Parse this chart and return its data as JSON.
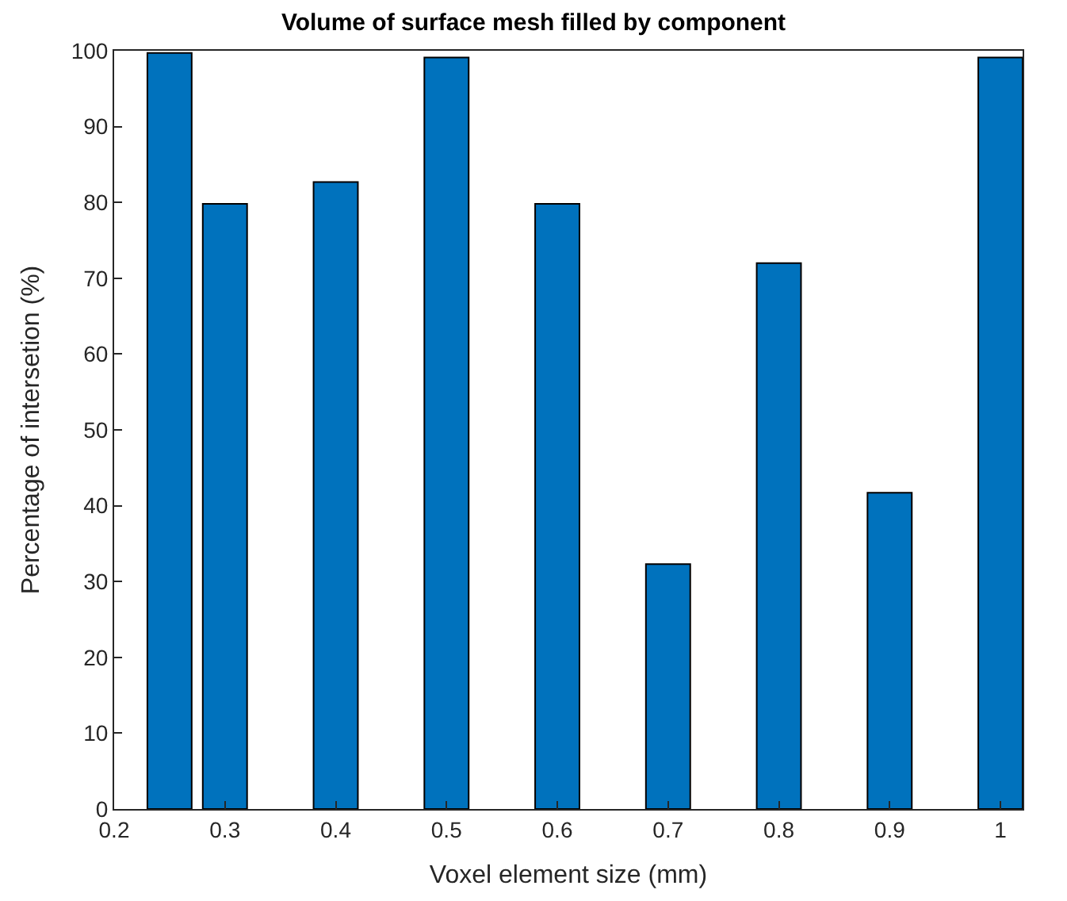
{
  "chart_data": {
    "type": "bar",
    "title": "Volume of surface mesh filled by component",
    "xlabel": "Voxel element size (mm)",
    "ylabel": "Percentage of intersetion (%)",
    "x": [
      0.25,
      0.3,
      0.4,
      0.5,
      0.6,
      0.7,
      0.8,
      0.9,
      1
    ],
    "values": [
      99.7,
      79.8,
      82.7,
      99.1,
      79.8,
      32.3,
      72,
      41.7,
      99.1
    ],
    "color": "#0072bd",
    "xlim": [
      0.2,
      1.02
    ],
    "xticks": [
      0.2,
      0.3,
      0.4,
      0.5,
      0.6,
      0.7,
      0.8,
      0.9,
      1
    ],
    "ylim": [
      0,
      100
    ],
    "yticks": [
      0,
      10,
      20,
      30,
      40,
      50,
      60,
      70,
      80,
      90,
      100
    ],
    "tick_labels": [
      "x",
      "y"
    ]
  }
}
